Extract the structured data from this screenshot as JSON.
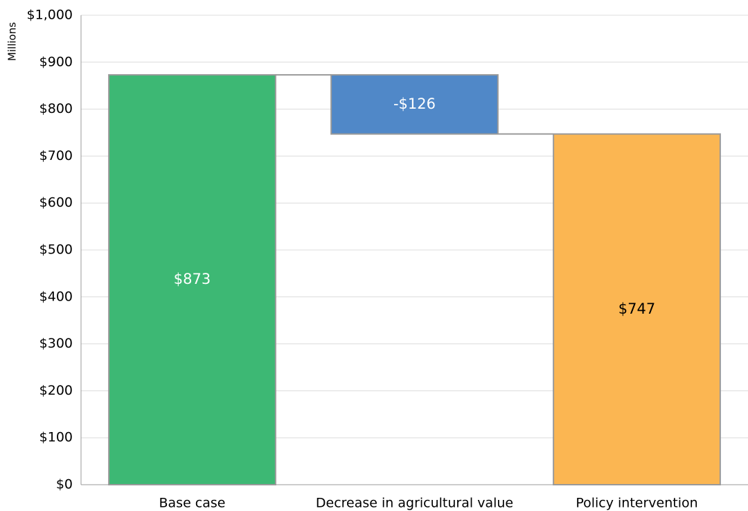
{
  "chart_data": {
    "type": "waterfall",
    "y_label": "Millions",
    "categories": [
      "Base case",
      "Decrease in agricultural value",
      "Policy intervention"
    ],
    "values": [
      873,
      -126,
      747
    ],
    "value_labels": [
      "$873",
      "-$126",
      "$747"
    ],
    "colors": [
      "#3db874",
      "#5088c8",
      "#fbb652"
    ],
    "label_colors": [
      "#ffffff",
      "#ffffff",
      "#000000"
    ],
    "ylim": [
      0,
      1000
    ],
    "yticks": [
      {
        "value": 0,
        "label": "$0"
      },
      {
        "value": 100,
        "label": "$100"
      },
      {
        "value": 200,
        "label": "$200"
      },
      {
        "value": 300,
        "label": "$300"
      },
      {
        "value": 400,
        "label": "$400"
      },
      {
        "value": 500,
        "label": "$500"
      },
      {
        "value": 600,
        "label": "$600"
      },
      {
        "value": 700,
        "label": "$700"
      },
      {
        "value": 800,
        "label": "$800"
      },
      {
        "value": 900,
        "label": "$900"
      },
      {
        "value": 1000,
        "label": "$1,000"
      }
    ],
    "grid": true
  }
}
